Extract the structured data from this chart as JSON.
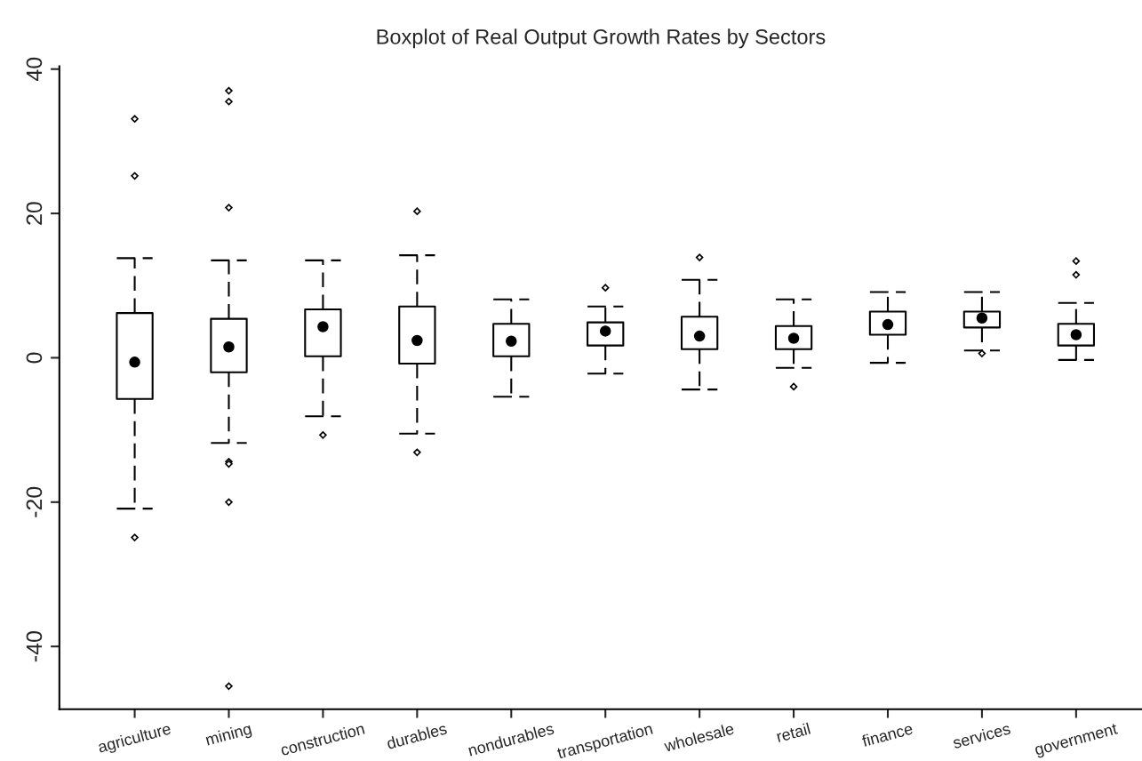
{
  "chart_data": {
    "type": "box",
    "title": "Boxplot of Real Output Growth Rates by Sectors",
    "categories": [
      "agriculture",
      "mining",
      "construction",
      "durables",
      "nondurables",
      "transportation",
      "wholesale",
      "retail",
      "finance",
      "services",
      "government"
    ],
    "boxes": [
      {
        "low": -20.9,
        "q1": -5.7,
        "median": -0.6,
        "q3": 6.2,
        "high": 13.8,
        "outliers": [
          33.1,
          25.2,
          -24.9
        ]
      },
      {
        "low": -11.8,
        "q1": -2.0,
        "median": 1.5,
        "q3": 5.4,
        "high": 13.5,
        "outliers": [
          37.0,
          35.5,
          20.8,
          -14.4,
          -14.7,
          -20.0,
          -45.5
        ]
      },
      {
        "low": -8.1,
        "q1": 0.2,
        "median": 4.3,
        "q3": 6.7,
        "high": 13.5,
        "outliers": [
          -10.7
        ]
      },
      {
        "low": -10.5,
        "q1": -0.8,
        "median": 2.4,
        "q3": 7.1,
        "high": 14.2,
        "outliers": [
          20.3,
          -13.1
        ]
      },
      {
        "low": -5.4,
        "q1": 0.2,
        "median": 2.3,
        "q3": 4.7,
        "high": 8.1
      },
      {
        "low": -2.2,
        "q1": 1.7,
        "median": 3.7,
        "q3": 4.9,
        "high": 7.1,
        "outliers": [
          9.7
        ]
      },
      {
        "low": -4.4,
        "q1": 1.2,
        "median": 3.0,
        "q3": 5.7,
        "high": 10.8,
        "outliers": [
          13.9
        ]
      },
      {
        "low": -1.4,
        "q1": 1.2,
        "median": 2.7,
        "q3": 4.4,
        "high": 8.1,
        "outliers": [
          -4.0
        ]
      },
      {
        "low": -0.7,
        "q1": 3.2,
        "median": 4.6,
        "q3": 6.4,
        "high": 9.1
      },
      {
        "low": 1.0,
        "q1": 4.2,
        "median": 5.5,
        "q3": 6.4,
        "high": 9.1,
        "outliers": [
          0.6
        ]
      },
      {
        "low": -0.3,
        "q1": 1.7,
        "median": 3.2,
        "q3": 4.7,
        "high": 7.6,
        "outliers": [
          13.4,
          11.5
        ]
      }
    ],
    "ylim": [
      -48.7,
      40.4
    ],
    "yticks": [
      -40,
      -20,
      0,
      20,
      40
    ],
    "grid": false,
    "legend": false
  }
}
